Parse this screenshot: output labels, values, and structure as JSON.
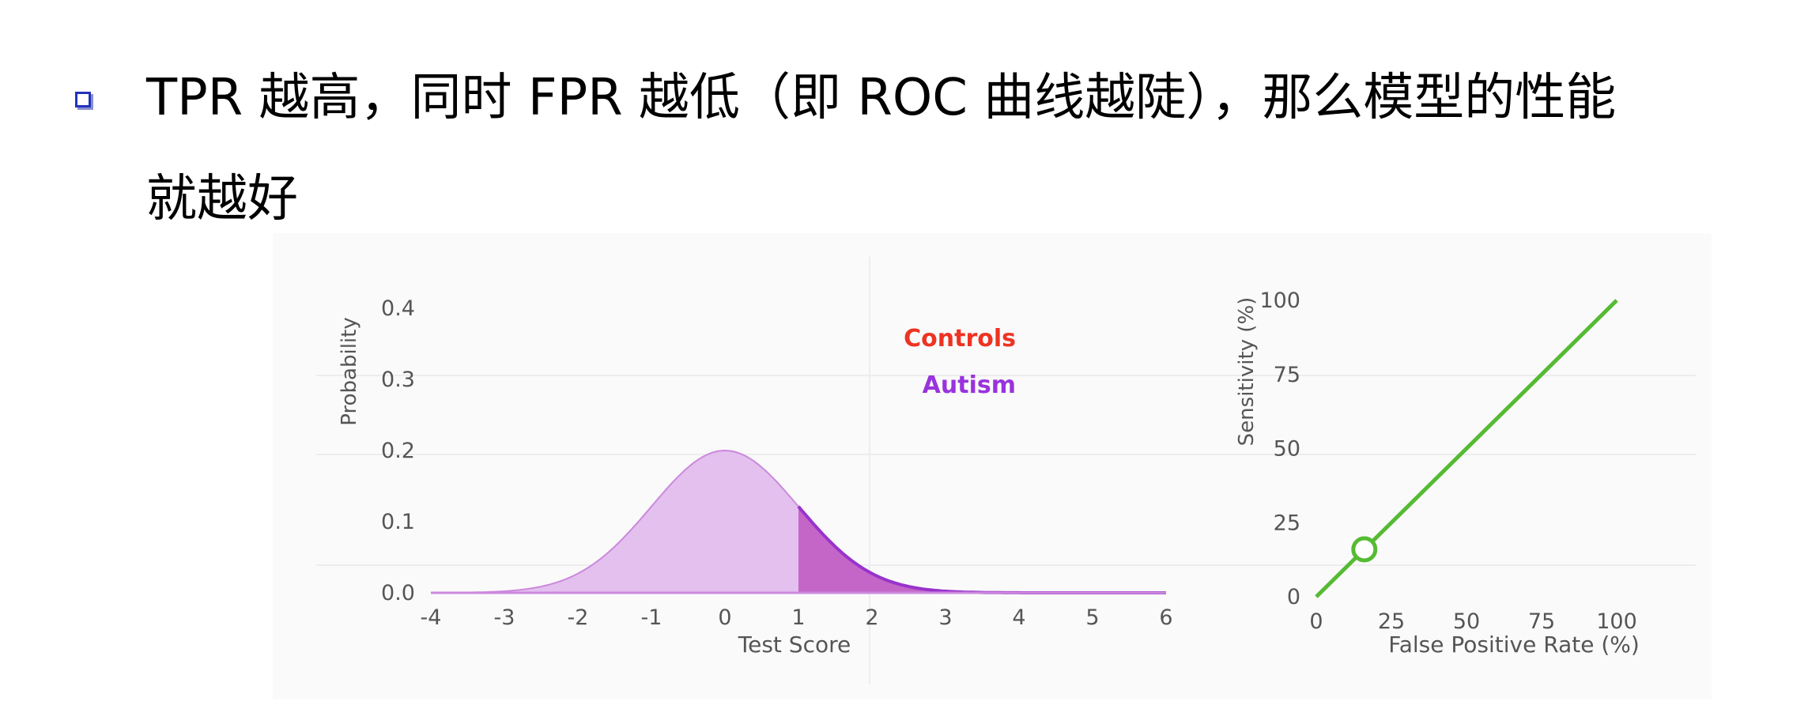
{
  "bullet": {
    "line1": "TPR 越高，同时 FPR 越低（即 ROC 曲线越陡），那么模型的性能",
    "line2": "就越好"
  },
  "chart_data": [
    {
      "type": "area",
      "xlabel": "Test Score",
      "ylabel": "Probability",
      "xlim": [
        -4,
        6
      ],
      "ylim": [
        0,
        0.4
      ],
      "xticks": [
        "-4",
        "-3",
        "-2",
        "-1",
        "0",
        "1",
        "2",
        "3",
        "4",
        "5",
        "6"
      ],
      "yticks": [
        "0.0",
        "0.1",
        "0.2",
        "0.3",
        "0.4"
      ],
      "legend": [
        {
          "name": "Controls",
          "color": "#ee3322"
        },
        {
          "name": "Autism",
          "color": "#9933dd"
        }
      ],
      "legend_position": "top-right",
      "distribution": {
        "mean": 0,
        "sd": 1,
        "peak": 0.2
      },
      "threshold": 1,
      "colors": {
        "fill": "#e3c0ee",
        "curve": "#cc88dd",
        "shaded": "#c466c8",
        "shaded_edge": "#9933cc"
      }
    },
    {
      "type": "line",
      "xlabel": "False Positive Rate (%)",
      "ylabel": "Sensitivity (%)",
      "xlim": [
        0,
        100
      ],
      "ylim": [
        0,
        100
      ],
      "xticks": [
        "0",
        "25",
        "50",
        "75",
        "100"
      ],
      "yticks": [
        "0",
        "25",
        "50",
        "75",
        "100"
      ],
      "series": [
        {
          "x": [
            0,
            100
          ],
          "y": [
            0,
            100
          ]
        }
      ],
      "marker": {
        "x": 16,
        "y": 16
      },
      "colors": {
        "line": "#55bb33"
      }
    }
  ]
}
